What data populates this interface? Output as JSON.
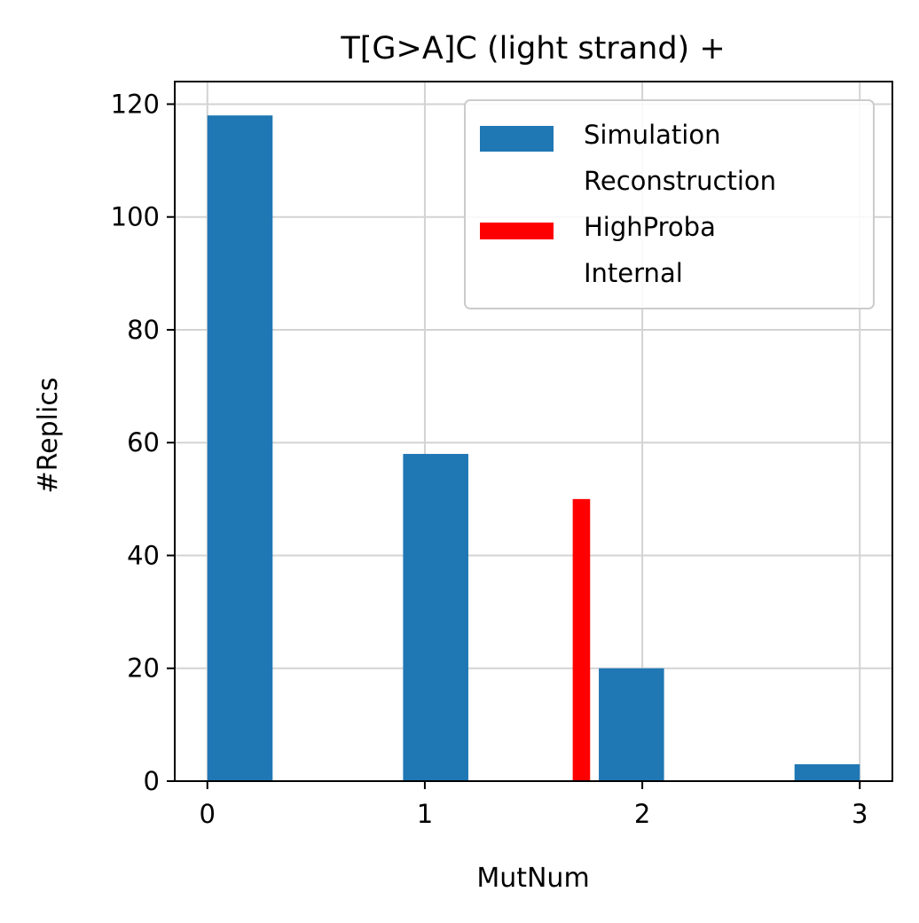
{
  "chart_data": {
    "type": "bar",
    "title": "T[G>A]C   (light strand) +",
    "xlabel": "MutNum",
    "ylabel": "#Replics",
    "xlim": [
      -0.15,
      3.15
    ],
    "ylim": [
      0,
      124
    ],
    "xticks": [
      0,
      1,
      2,
      3
    ],
    "yticks": [
      0,
      20,
      40,
      60,
      80,
      100,
      120
    ],
    "grid": true,
    "legend_position": "top-right",
    "series": [
      {
        "name": "Simulation",
        "color": "#1f77b4",
        "bars": [
          {
            "x_start": 0.0,
            "x_end": 0.3,
            "value": 118
          },
          {
            "x_start": 0.9,
            "x_end": 1.2,
            "value": 58
          },
          {
            "x_start": 1.8,
            "x_end": 2.1,
            "value": 20
          },
          {
            "x_start": 2.7,
            "x_end": 3.0,
            "value": 3
          }
        ]
      },
      {
        "name": "Reconstruction\nHighProba\nInternal",
        "color": "#ff0000",
        "bars": [
          {
            "x_start": 1.68,
            "x_end": 1.76,
            "value": 50
          }
        ]
      }
    ]
  }
}
